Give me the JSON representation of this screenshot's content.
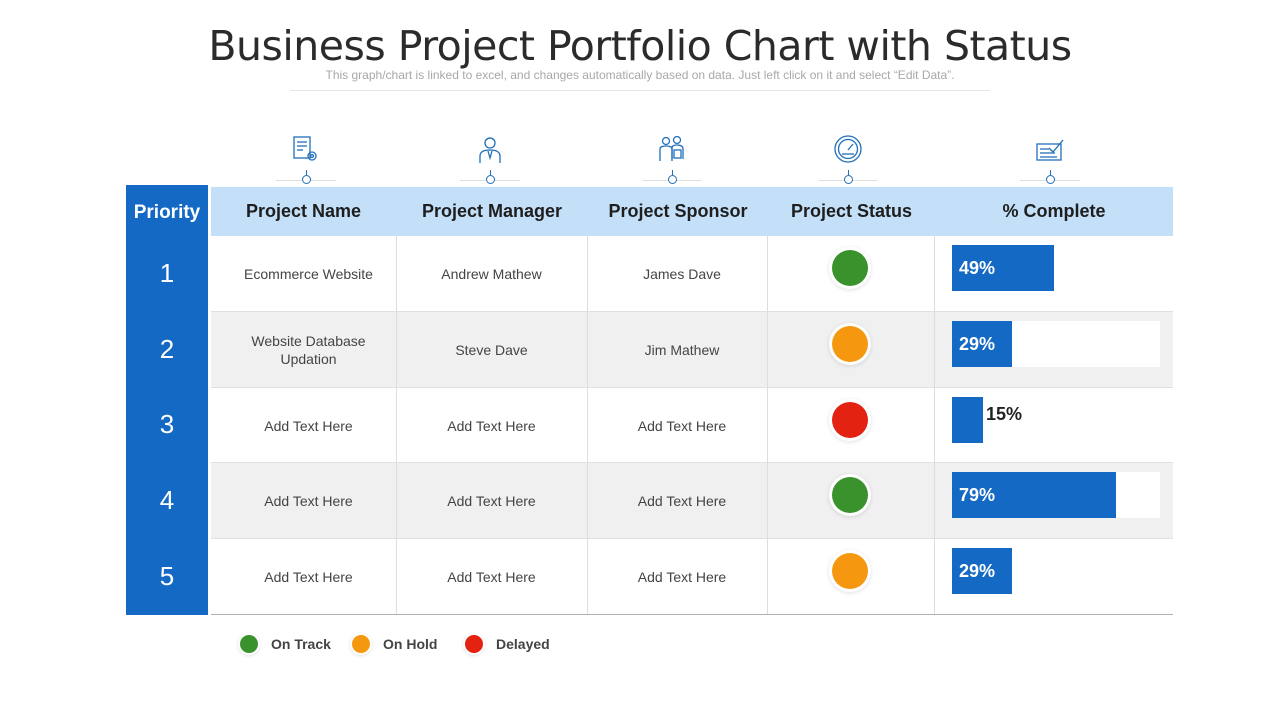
{
  "title": "Business Project Portfolio Chart with Status",
  "subtitle": "This graph/chart is linked to excel, and changes automatically based on data. Just left click on it and select “Edit Data”.",
  "columns": {
    "priority": "Priority",
    "name": "Project Name",
    "manager": "Project Manager",
    "sponsor": "Project Sponsor",
    "status": "Project Status",
    "complete": "% Complete"
  },
  "icons": [
    "document-gear-icon",
    "manager-person-icon",
    "sponsor-group-icon",
    "speedometer-icon",
    "checklist-icon"
  ],
  "rows": [
    {
      "priority": "1",
      "name": "Ecommerce Website",
      "manager": "Andrew Mathew",
      "sponsor": "James Dave",
      "status": "on_track",
      "complete": 49,
      "complete_label": "49%"
    },
    {
      "priority": "2",
      "name": "Website Database Updation",
      "manager": "Steve Dave",
      "sponsor": "Jim Mathew",
      "status": "on_hold",
      "complete": 29,
      "complete_label": "29%"
    },
    {
      "priority": "3",
      "name": "Add Text Here",
      "manager": "Add Text Here",
      "sponsor": "Add Text Here",
      "status": "delayed",
      "complete": 15,
      "complete_label": "15%"
    },
    {
      "priority": "4",
      "name": "Add Text Here",
      "manager": "Add Text Here",
      "sponsor": "Add Text Here",
      "status": "on_track",
      "complete": 79,
      "complete_label": "79%"
    },
    {
      "priority": "5",
      "name": "Add Text Here",
      "manager": "Add Text Here",
      "sponsor": "Add Text Here",
      "status": "on_hold",
      "complete": 29,
      "complete_label": "29%"
    }
  ],
  "legend": [
    {
      "key": "on_track",
      "label": "On Track"
    },
    {
      "key": "on_hold",
      "label": "On Hold"
    },
    {
      "key": "delayed",
      "label": "Delayed"
    }
  ],
  "colors": {
    "accent": "#1469c4",
    "header_bg": "#c3e0f8",
    "on_track": "#3a922c",
    "on_hold": "#f5980f",
    "delayed": "#e32211"
  }
}
